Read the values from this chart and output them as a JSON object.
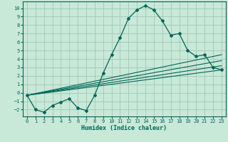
{
  "xlabel": "Humidex (Indice chaleur)",
  "xlim": [
    -0.5,
    23.5
  ],
  "ylim": [
    -2.8,
    10.8
  ],
  "xticks": [
    0,
    1,
    2,
    3,
    4,
    5,
    6,
    7,
    8,
    9,
    10,
    11,
    12,
    13,
    14,
    15,
    16,
    17,
    18,
    19,
    20,
    21,
    22,
    23
  ],
  "yticks": [
    -2,
    -1,
    0,
    1,
    2,
    3,
    4,
    5,
    6,
    7,
    8,
    9,
    10
  ],
  "bg_color": "#c8e8d8",
  "grid_color": "#a0c8b8",
  "line_color": "#006655",
  "main_curve_x": [
    0,
    1,
    2,
    3,
    4,
    5,
    6,
    7,
    8,
    9,
    10,
    11,
    12,
    13,
    14,
    15,
    16,
    17,
    18,
    19,
    20,
    21,
    22,
    23
  ],
  "main_curve_y": [
    -0.3,
    -2.0,
    -2.3,
    -1.5,
    -1.1,
    -0.7,
    -1.8,
    -2.1,
    -0.3,
    2.3,
    4.5,
    6.5,
    8.8,
    9.8,
    10.3,
    9.8,
    8.5,
    6.8,
    7.0,
    5.0,
    4.3,
    4.5,
    3.0,
    2.7
  ],
  "line1_x": [
    0,
    23
  ],
  "line1_y": [
    -0.3,
    4.5
  ],
  "line2_x": [
    0,
    23
  ],
  "line2_y": [
    -0.3,
    3.8
  ],
  "line3_x": [
    0,
    23
  ],
  "line3_y": [
    -0.3,
    3.2
  ],
  "line4_x": [
    0,
    23
  ],
  "line4_y": [
    -0.3,
    2.7
  ]
}
